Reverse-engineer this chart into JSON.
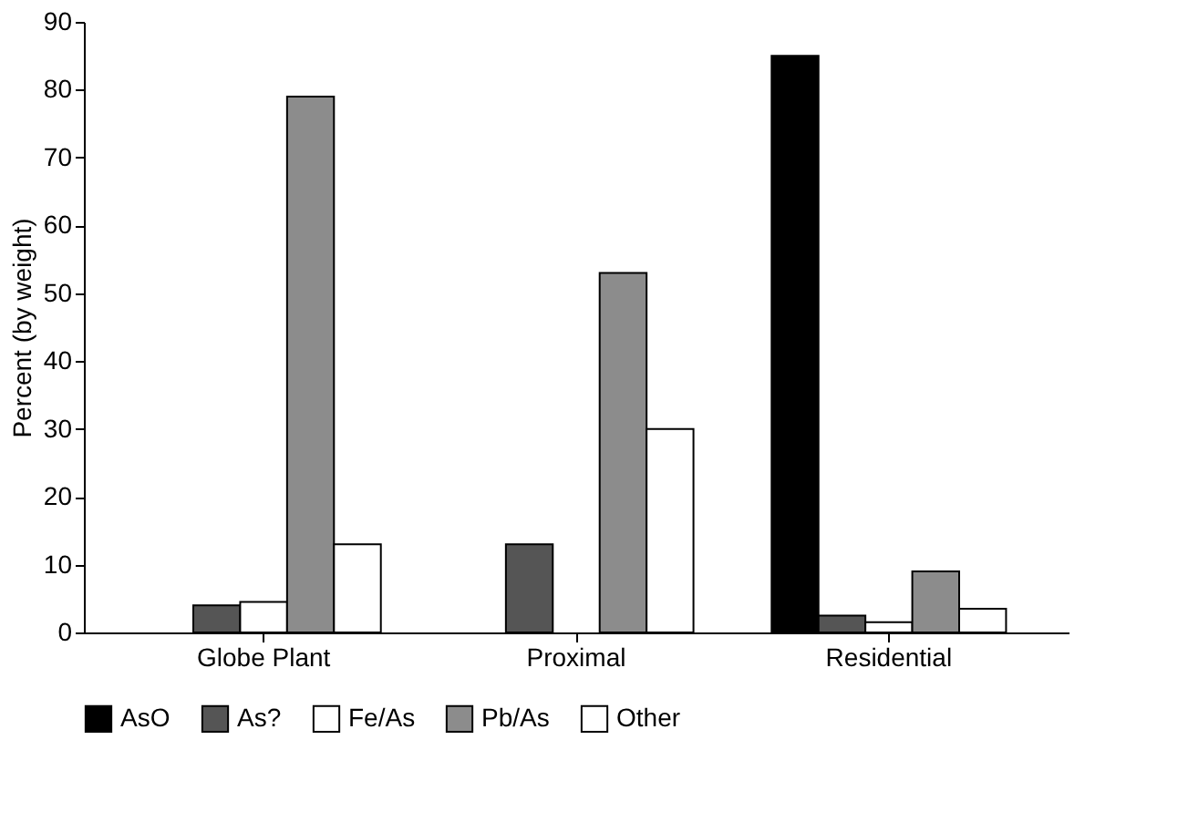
{
  "chart_data": {
    "type": "bar",
    "ylabel": "Percent (by weight)",
    "categories": [
      "Globe Plant",
      "Proximal",
      "Residential"
    ],
    "series": [
      {
        "name": "AsO",
        "color": "#000000",
        "values": [
          0,
          0,
          85
        ]
      },
      {
        "name": "As?",
        "color": "#555555",
        "values": [
          4,
          13,
          2.5
        ]
      },
      {
        "name": "Fe/As",
        "color": "#ffffff",
        "values": [
          4.5,
          0,
          1.5
        ]
      },
      {
        "name": "Pb/As",
        "color": "#8c8c8c",
        "values": [
          79,
          53,
          9
        ]
      },
      {
        "name": "Other",
        "color": "#ffffff",
        "values": [
          13,
          30,
          3.5
        ]
      }
    ],
    "ylim": [
      0,
      90
    ],
    "yticks": [
      0,
      10,
      20,
      30,
      40,
      50,
      60,
      70,
      80,
      90
    ],
    "grid": false,
    "legend": "bottom"
  }
}
